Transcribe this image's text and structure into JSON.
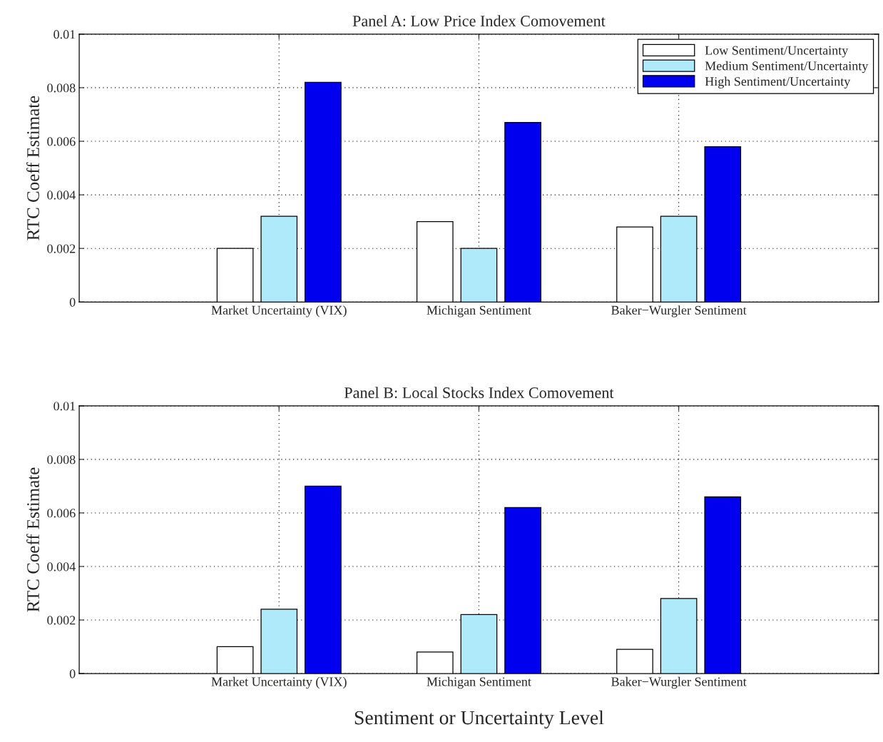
{
  "chart_data": [
    {
      "type": "bar",
      "title": "Panel A: Low Price Index Comovement",
      "ylabel": "RTC Coeff Estimate",
      "categories": [
        "Market Uncertainty (VIX)",
        "Michigan Sentiment",
        "Baker−Wurgler Sentiment"
      ],
      "series": [
        {
          "name": "Low Sentiment/Uncertainty",
          "color": "#ffffff",
          "values": [
            0.002,
            0.003,
            0.0028
          ]
        },
        {
          "name": "Medium Sentiment/Uncertainty",
          "color": "#aeeafa",
          "values": [
            0.0032,
            0.002,
            0.0032
          ]
        },
        {
          "name": "High Sentiment/Uncertainty",
          "color": "#0000ee",
          "values": [
            0.0082,
            0.0067,
            0.0058
          ]
        }
      ],
      "ylim": [
        0,
        0.01
      ],
      "yticks": [
        0,
        0.002,
        0.004,
        0.006,
        0.008,
        0.01
      ],
      "grid": true,
      "legend": "top right"
    },
    {
      "type": "bar",
      "title": "Panel B: Local Stocks Index Comovement",
      "ylabel": "RTC Coeff Estimate",
      "xlabel": "Sentiment or Uncertainty Level",
      "categories": [
        "Market Uncertainty (VIX)",
        "Michigan Sentiment",
        "Baker−Wurgler Sentiment"
      ],
      "series": [
        {
          "color": "#ffffff",
          "values": [
            0.001,
            0.0008,
            0.0009
          ]
        },
        {
          "color": "#aeeafa",
          "values": [
            0.0024,
            0.0022,
            0.0028
          ]
        },
        {
          "color": "#0000ee",
          "values": [
            0.007,
            0.0062,
            0.0066
          ]
        }
      ],
      "ylim": [
        0,
        0.01
      ],
      "yticks": [
        0,
        0.002,
        0.004,
        0.006,
        0.008,
        0.01
      ],
      "grid": true
    }
  ]
}
